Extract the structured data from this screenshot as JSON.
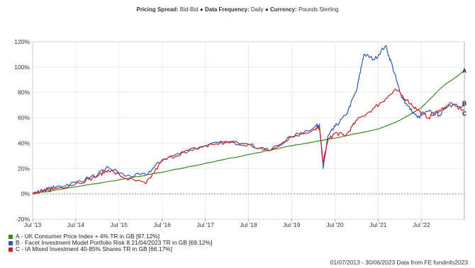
{
  "header": {
    "pricing_label": "Pricing Spread:",
    "pricing_value": "Bid-Bid",
    "frequency_label": "Data Frequency:",
    "frequency_value": "Daily",
    "currency_label": "Currency:",
    "currency_value": "Pounds Sterling",
    "separator": "●"
  },
  "footer": "01/07/2013 - 30/06/2023 Data from FE fundinfo2023",
  "chart_data": {
    "type": "line",
    "title": "",
    "xlabel": "",
    "ylabel": "",
    "x_range": [
      "2013-07-01",
      "2023-06-30"
    ],
    "ylim": [
      -20,
      120
    ],
    "y_ticks": [
      -20,
      0,
      20,
      40,
      60,
      80,
      100,
      120
    ],
    "y_tick_labels": [
      "-20%",
      "0%",
      "20%",
      "40%",
      "60%",
      "80%",
      "100%",
      "120%"
    ],
    "x_ticks": [
      "2013-07-01",
      "2014-07-01",
      "2015-07-01",
      "2016-07-01",
      "2017-07-01",
      "2018-07-01",
      "2019-07-01",
      "2020-07-01",
      "2021-07-01",
      "2022-07-01"
    ],
    "x_tick_labels": [
      "Jul '13",
      "Jul '14",
      "Jul '15",
      "Jul '16",
      "Jul '17",
      "Jul '18",
      "Jul '19",
      "Jul '20",
      "Jul '21",
      "Jul '22"
    ],
    "grid": true,
    "legend_position": "bottom-left",
    "series": [
      {
        "name": "A - UK Consumer Price Index + 4% TR in GB [97.12%]",
        "label": "A",
        "color": "#3b8a1e",
        "x": [
          "2013-07-01",
          "2014-07-01",
          "2015-07-01",
          "2016-07-01",
          "2017-07-01",
          "2018-07-01",
          "2019-07-01",
          "2020-07-01",
          "2021-07-01",
          "2022-01-01",
          "2022-07-01",
          "2023-01-01",
          "2023-06-30"
        ],
        "values": [
          0,
          5.5,
          11,
          17,
          24,
          31,
          38,
          44,
          51,
          58,
          68,
          85,
          97.12
        ]
      },
      {
        "name": "B - Facet Investment Model Portfolio Risk 8 21/04/2023 TR in GB [69.12%]",
        "label": "B",
        "color": "#2c56b8",
        "x": [
          "2013-07-01",
          "2013-10-01",
          "2014-01-01",
          "2014-07-01",
          "2015-01-01",
          "2015-04-01",
          "2015-09-01",
          "2016-02-15",
          "2016-07-01",
          "2017-01-01",
          "2017-07-01",
          "2018-01-01",
          "2018-07-01",
          "2018-12-20",
          "2019-07-01",
          "2020-01-15",
          "2020-02-20",
          "2020-03-23",
          "2020-05-01",
          "2020-07-01",
          "2020-10-01",
          "2021-01-01",
          "2021-03-01",
          "2021-06-01",
          "2021-09-01",
          "2021-11-01",
          "2022-01-01",
          "2022-03-01",
          "2022-06-01",
          "2022-09-01",
          "2022-12-01",
          "2023-03-01",
          "2023-06-30"
        ],
        "values": [
          0,
          3,
          5,
          9,
          15,
          21,
          14,
          15,
          27,
          33,
          38,
          41,
          39,
          34,
          45,
          53,
          55,
          20,
          45,
          53,
          62,
          82,
          110,
          106,
          117,
          100,
          80,
          70,
          60,
          65,
          62,
          72,
          69.12
        ]
      },
      {
        "name": "C - IA Mixed Investment 40-85% Shares TR in GB [66.17%]",
        "label": "C",
        "color": "#cc1f1f",
        "x": [
          "2013-07-01",
          "2013-10-01",
          "2014-01-01",
          "2014-07-01",
          "2015-01-01",
          "2015-04-01",
          "2015-09-01",
          "2016-02-15",
          "2016-07-01",
          "2017-01-01",
          "2017-07-01",
          "2018-01-01",
          "2018-07-01",
          "2018-12-20",
          "2019-07-01",
          "2020-01-15",
          "2020-02-20",
          "2020-03-23",
          "2020-05-01",
          "2020-07-01",
          "2020-10-01",
          "2021-01-01",
          "2021-06-01",
          "2021-09-01",
          "2021-12-01",
          "2022-03-01",
          "2022-06-01",
          "2022-09-01",
          "2022-12-01",
          "2023-03-01",
          "2023-06-30"
        ],
        "values": [
          0,
          2,
          4,
          8,
          14,
          19,
          12,
          8,
          26,
          33,
          38,
          41,
          39,
          34,
          45,
          51,
          52,
          25,
          42,
          48,
          46,
          58,
          68,
          75,
          82,
          74,
          66,
          60,
          66,
          70,
          66.17
        ]
      }
    ]
  }
}
